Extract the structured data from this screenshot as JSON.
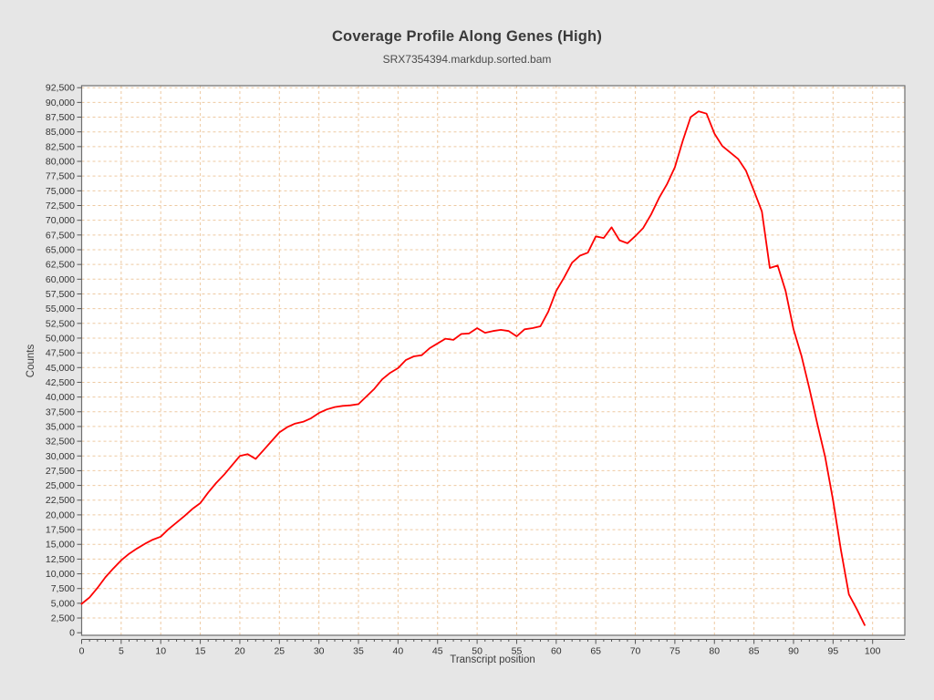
{
  "page": {
    "background_color": "#e6e6e6",
    "plot_background_color": "#ffffff"
  },
  "chart_data": {
    "type": "line",
    "title": "Coverage Profile Along Genes (High)",
    "subtitle": "SRX7354394.markdup.sorted.bam",
    "xlabel": "Transcript position",
    "ylabel": "Counts",
    "line_color": "#fe0000",
    "grid": {
      "on": true,
      "style": "dashed",
      "color": "#eec9a1"
    },
    "legend": "none",
    "xlim": [
      0,
      104
    ],
    "ylim": [
      0,
      93500
    ],
    "x_axis": {
      "tick_min": 0,
      "tick_max": 100,
      "major_step": 5,
      "minor_step": 1
    },
    "y_axis": {
      "tick_min": 0,
      "tick_max": 92500,
      "step": 2500,
      "label_format": "thousands-comma"
    },
    "x": [
      0,
      1,
      2,
      3,
      4,
      5,
      6,
      7,
      8,
      9,
      10,
      11,
      12,
      13,
      14,
      15,
      16,
      17,
      18,
      19,
      20,
      21,
      22,
      23,
      24,
      25,
      26,
      27,
      28,
      29,
      30,
      31,
      32,
      33,
      34,
      35,
      36,
      37,
      38,
      39,
      40,
      41,
      42,
      43,
      44,
      45,
      46,
      47,
      48,
      49,
      50,
      51,
      52,
      53,
      54,
      55,
      56,
      57,
      58,
      59,
      60,
      61,
      62,
      63,
      64,
      65,
      66,
      67,
      68,
      69,
      70,
      71,
      72,
      73,
      74,
      75,
      76,
      77,
      78,
      79,
      80,
      81,
      82,
      83,
      84,
      85,
      86,
      87,
      88,
      89,
      90,
      91,
      92,
      93,
      94,
      95,
      96,
      97,
      98,
      99
    ],
    "y": [
      4900,
      6000,
      7600,
      9400,
      10900,
      12300,
      13400,
      14300,
      15100,
      15800,
      16300,
      17600,
      18700,
      19800,
      21000,
      22000,
      23800,
      25400,
      26800,
      28400,
      30000,
      30300,
      29500,
      31000,
      32500,
      34000,
      34900,
      35500,
      35800,
      36400,
      37300,
      37900,
      38300,
      38500,
      38600,
      38800,
      40100,
      41400,
      43000,
      44100,
      44900,
      46300,
      46900,
      47100,
      48300,
      49100,
      49900,
      49700,
      50700,
      50800,
      51700,
      50900,
      51200,
      51400,
      51200,
      50300,
      51500,
      51700,
      52000,
      54500,
      58000,
      60300,
      62800,
      64000,
      64500,
      67250,
      67000,
      68800,
      66600,
      66100,
      67300,
      68700,
      71000,
      73800,
      76100,
      79000,
      83500,
      87500,
      88500,
      88100,
      84700,
      82600,
      81500,
      80400,
      78400,
      75000,
      71500,
      61900,
      62300,
      58000,
      51500,
      47000,
      41500,
      35500,
      29800,
      22500,
      14000,
      6500,
      4000,
      1300
    ]
  }
}
